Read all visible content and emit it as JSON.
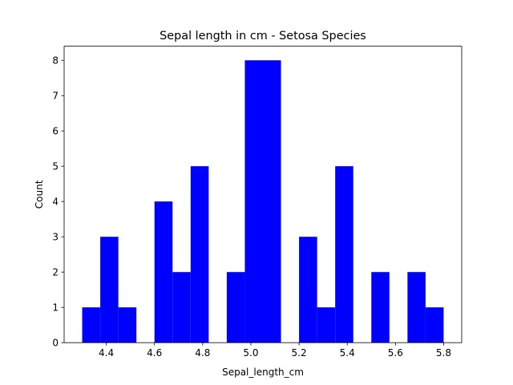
{
  "chart_data": {
    "type": "bar",
    "title": "Sepal length in cm - Setosa Species",
    "xlabel": "Sepal_length_cm",
    "ylabel": "Count",
    "xlim": [
      4.225,
      5.875
    ],
    "ylim": [
      0,
      8.4
    ],
    "xticks": [
      4.4,
      4.6,
      4.8,
      5.0,
      5.2,
      5.4,
      5.6,
      5.8
    ],
    "xtick_labels": [
      "4.4",
      "4.6",
      "4.8",
      "5.0",
      "5.2",
      "5.4",
      "5.6",
      "5.8"
    ],
    "yticks": [
      0,
      1,
      2,
      3,
      4,
      5,
      6,
      7,
      8
    ],
    "ytick_labels": [
      "0",
      "1",
      "2",
      "3",
      "4",
      "5",
      "6",
      "7",
      "8"
    ],
    "grid": false,
    "bar_color": "#0000ff",
    "bins": [
      {
        "x0": 4.3,
        "x1": 4.375,
        "count": 1
      },
      {
        "x0": 4.375,
        "x1": 4.45,
        "count": 3
      },
      {
        "x0": 4.45,
        "x1": 4.525,
        "count": 1
      },
      {
        "x0": 4.525,
        "x1": 4.6,
        "count": 0
      },
      {
        "x0": 4.6,
        "x1": 4.675,
        "count": 4
      },
      {
        "x0": 4.675,
        "x1": 4.75,
        "count": 2
      },
      {
        "x0": 4.75,
        "x1": 4.825,
        "count": 5
      },
      {
        "x0": 4.825,
        "x1": 4.9,
        "count": 0
      },
      {
        "x0": 4.9,
        "x1": 4.975,
        "count": 2
      },
      {
        "x0": 4.975,
        "x1": 5.05,
        "count": 8
      },
      {
        "x0": 5.05,
        "x1": 5.125,
        "count": 8
      },
      {
        "x0": 5.125,
        "x1": 5.2,
        "count": 0
      },
      {
        "x0": 5.2,
        "x1": 5.275,
        "count": 3
      },
      {
        "x0": 5.275,
        "x1": 5.35,
        "count": 1
      },
      {
        "x0": 5.35,
        "x1": 5.425,
        "count": 5
      },
      {
        "x0": 5.425,
        "x1": 5.5,
        "count": 0
      },
      {
        "x0": 5.5,
        "x1": 5.575,
        "count": 2
      },
      {
        "x0": 5.575,
        "x1": 5.65,
        "count": 0
      },
      {
        "x0": 5.65,
        "x1": 5.725,
        "count": 2
      },
      {
        "x0": 5.725,
        "x1": 5.8,
        "count": 1
      }
    ]
  }
}
